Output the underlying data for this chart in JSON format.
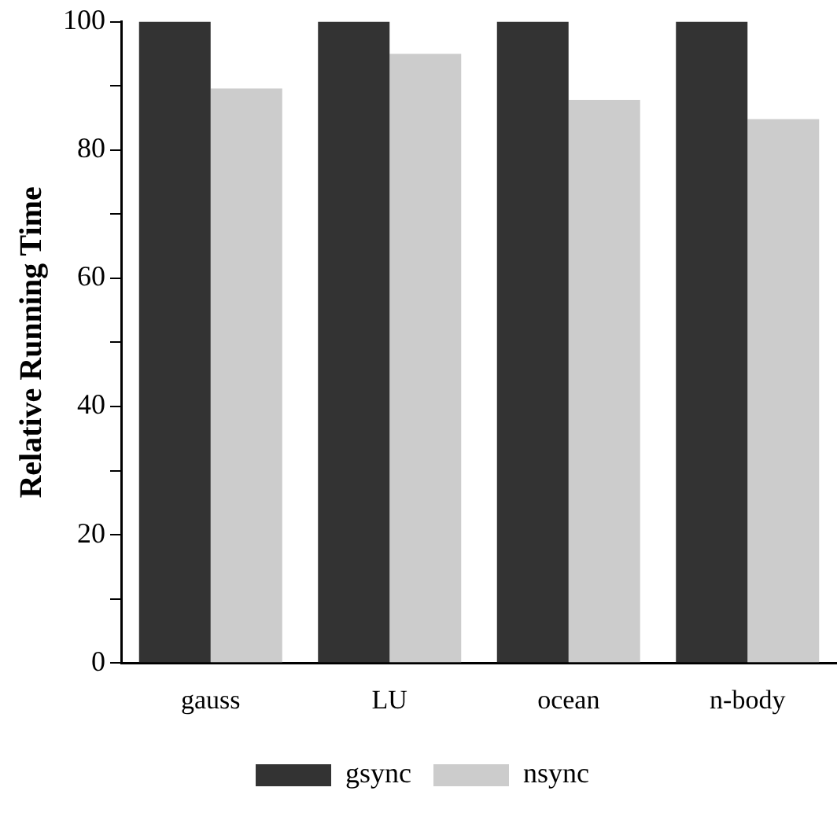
{
  "chart_data": {
    "type": "bar",
    "ylabel": "Relative Running Time",
    "categories": [
      "gauss",
      "LU",
      "ocean",
      "n-body"
    ],
    "series": [
      {
        "name": "gsync",
        "color": "#333333",
        "values": [
          100,
          100,
          100,
          100
        ]
      },
      {
        "name": "nsync",
        "color": "#cccccc",
        "values": [
          89.6,
          95,
          87.8,
          84.8
        ]
      }
    ],
    "ylim": [
      0,
      100
    ],
    "yticks": [
      0,
      {
        "value": 10,
        "label": null
      },
      20,
      {
        "value": 30,
        "label": null
      },
      40,
      {
        "value": 50,
        "label": null
      },
      60,
      {
        "value": 70,
        "label": null
      },
      80,
      {
        "value": 90,
        "label": null
      },
      100
    ],
    "grid": false,
    "legend": "bottom"
  }
}
